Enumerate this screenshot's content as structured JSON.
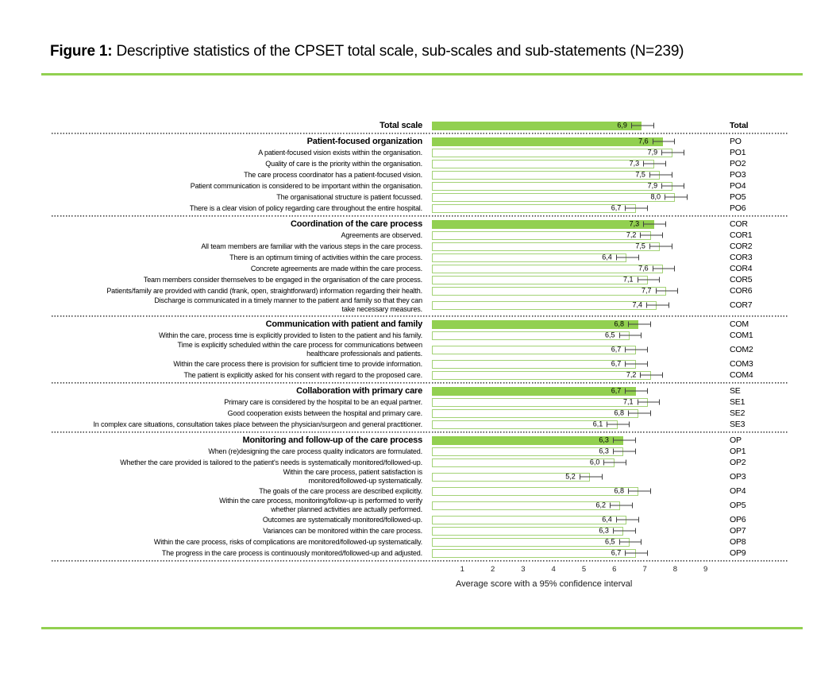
{
  "figure": {
    "title_prefix": "Figure 1:",
    "title_rest": " Descriptive statistics of the CPSET total scale, sub-scales and sub-statements (N=239)"
  },
  "colors": {
    "bar_fill_green": "#92d050",
    "bar_outline_green": "#a3d276",
    "rule_green": "#92d050",
    "whisker_gray": "#404040"
  },
  "chart_data": {
    "type": "bar",
    "orientation": "horizontal",
    "title": "Descriptive statistics of the CPSET total scale, sub-scales and sub-statements (N=239)",
    "xlabel": "Average score with a 95% confidence interval",
    "x_ticks": [
      1,
      2,
      3,
      4,
      5,
      6,
      7,
      8,
      9
    ],
    "xlim": [
      0,
      9.6
    ],
    "error_bars": true,
    "ci_halfwidth_estimate": 0.35,
    "decimal_separator": ",",
    "groups": [
      {
        "name": "total",
        "rows": [
          {
            "code": "Total",
            "code_bold": true,
            "kind": "header",
            "label": "Total scale",
            "value": 6.9,
            "display": "6,9"
          }
        ]
      },
      {
        "name": "patient-focused-organization",
        "rows": [
          {
            "code": "PO",
            "kind": "header",
            "label": "Patient-focused organization",
            "value": 7.6,
            "display": "7,6"
          },
          {
            "code": "PO1",
            "kind": "item",
            "label": "A patient-focused vision exists within the organisation.",
            "value": 7.9,
            "display": "7,9"
          },
          {
            "code": "PO2",
            "kind": "item",
            "label": "Quality of care is the priority within the organisation.",
            "value": 7.3,
            "display": "7,3"
          },
          {
            "code": "PO3",
            "kind": "item",
            "label": "The care process coordinator has a patient-focused vision.",
            "value": 7.5,
            "display": "7,5"
          },
          {
            "code": "PO4",
            "kind": "item",
            "label": "Patient communication is considered to be important within the organisation.",
            "value": 7.9,
            "display": "7,9"
          },
          {
            "code": "PO5",
            "kind": "item",
            "label": "The organisational structure is patient focussed.",
            "value": 8.0,
            "display": "8,0"
          },
          {
            "code": "PO6",
            "kind": "item",
            "label": "There is a clear vision of policy regarding care throughout the entire hospital.",
            "value": 6.7,
            "display": "6,7"
          }
        ]
      },
      {
        "name": "coordination-of-the-care-process",
        "rows": [
          {
            "code": "COR",
            "kind": "header",
            "label": "Coordination of the care process",
            "value": 7.3,
            "display": "7,3"
          },
          {
            "code": "COR1",
            "kind": "item",
            "label": "Agreements are observed.",
            "value": 7.2,
            "display": "7,2"
          },
          {
            "code": "COR2",
            "kind": "item",
            "label": "All team members are familiar with the various steps in the care process.",
            "value": 7.5,
            "display": "7,5"
          },
          {
            "code": "COR3",
            "kind": "item",
            "label": "There is an optimum timing of activities within the care process.",
            "value": 6.4,
            "display": "6,4"
          },
          {
            "code": "COR4",
            "kind": "item",
            "label": "Concrete agreements are made within the care process.",
            "value": 7.6,
            "display": "7,6"
          },
          {
            "code": "COR5",
            "kind": "item",
            "label": "Team members consider themselves to be engaged in the organisation of the care process.",
            "value": 7.1,
            "display": "7,1"
          },
          {
            "code": "COR6",
            "kind": "item",
            "label": "Patients/family are provided with candid (frank, open, straightforward) information regarding their health.",
            "value": 7.7,
            "display": "7,7"
          },
          {
            "code": "COR7",
            "kind": "item",
            "label": "Discharge is communicated in a timely manner to the patient and family so that they can\ntake necessary measures.",
            "value": 7.4,
            "display": "7,4"
          }
        ]
      },
      {
        "name": "communication-with-patient-and-family",
        "rows": [
          {
            "code": "COM",
            "kind": "header",
            "label": "Communication with patient and family",
            "value": 6.8,
            "display": "6,8"
          },
          {
            "code": "COM1",
            "kind": "item",
            "label": "Within the care, process time is explicitly provided to listen to the patient and his family.",
            "value": 6.5,
            "display": "6,5"
          },
          {
            "code": "COM2",
            "kind": "item",
            "label": "Time is explicitly scheduled within the care process for communications between\nhealthcare professionals and patients.",
            "value": 6.7,
            "display": "6,7"
          },
          {
            "code": "COM3",
            "kind": "item",
            "label": "Within the care process there is provision for sufficient time to provide information.",
            "value": 6.7,
            "display": "6,7"
          },
          {
            "code": "COM4",
            "kind": "item",
            "label": "The patient is explicitly asked for his consent with regard to the proposed care.",
            "value": 7.2,
            "display": "7,2"
          }
        ]
      },
      {
        "name": "collaboration-with-primary-care",
        "rows": [
          {
            "code": "SE",
            "kind": "header",
            "label": "Collaboration with primary care",
            "value": 6.7,
            "display": "6,7"
          },
          {
            "code": "SE1",
            "kind": "item",
            "label": "Primary care is considered by the hospital to be an equal partner.",
            "value": 7.1,
            "display": "7,1"
          },
          {
            "code": "SE2",
            "kind": "item",
            "label": "Good cooperation exists between the hospital and primary care.",
            "value": 6.8,
            "display": "6,8"
          },
          {
            "code": "SE3",
            "kind": "item",
            "label": "In complex care situations, consultation takes place between the physician/surgeon and general practitioner.",
            "value": 6.1,
            "display": "6,1"
          }
        ]
      },
      {
        "name": "monitoring-and-follow-up-of-the-care-process",
        "rows": [
          {
            "code": "OP",
            "kind": "header",
            "label": "Monitoring and follow-up of the care process",
            "value": 6.3,
            "display": "6,3"
          },
          {
            "code": "OP1",
            "kind": "item",
            "label": "When (re)designing the care process quality indicators are formulated.",
            "value": 6.3,
            "display": "6,3"
          },
          {
            "code": "OP2",
            "kind": "item",
            "label": "Whether the care provided is tailored to the patient's needs is systematically monitored/followed-up.",
            "value": 6.0,
            "display": "6,0"
          },
          {
            "code": "OP3",
            "kind": "item",
            "label": "Within the care process, patient satisfaction is\nmonitored/followed-up systematically.",
            "value": 5.2,
            "display": "5,2"
          },
          {
            "code": "OP4",
            "kind": "item",
            "label": "The goals of the care process are described explicitly.",
            "value": 6.8,
            "display": "6,8"
          },
          {
            "code": "OP5",
            "kind": "item",
            "label": "Within the care process, monitoring/follow-up is performed to verify\nwhether planned activities are actually performed.",
            "value": 6.2,
            "display": "6,2"
          },
          {
            "code": "OP6",
            "kind": "item",
            "label": "Outcomes are systematically monitored/followed-up.",
            "value": 6.4,
            "display": "6,4"
          },
          {
            "code": "OP7",
            "kind": "item",
            "label": "Variances can be monitored within the care process.",
            "value": 6.3,
            "display": "6,3"
          },
          {
            "code": "OP8",
            "kind": "item",
            "label": "Within the care process, risks of complications are monitored/followed-up systematically.",
            "value": 6.5,
            "display": "6,5"
          },
          {
            "code": "OP9",
            "kind": "item",
            "label": "The progress in the care process is continuously monitored/followed-up and adjusted.",
            "value": 6.7,
            "display": "6,7"
          }
        ]
      }
    ]
  }
}
